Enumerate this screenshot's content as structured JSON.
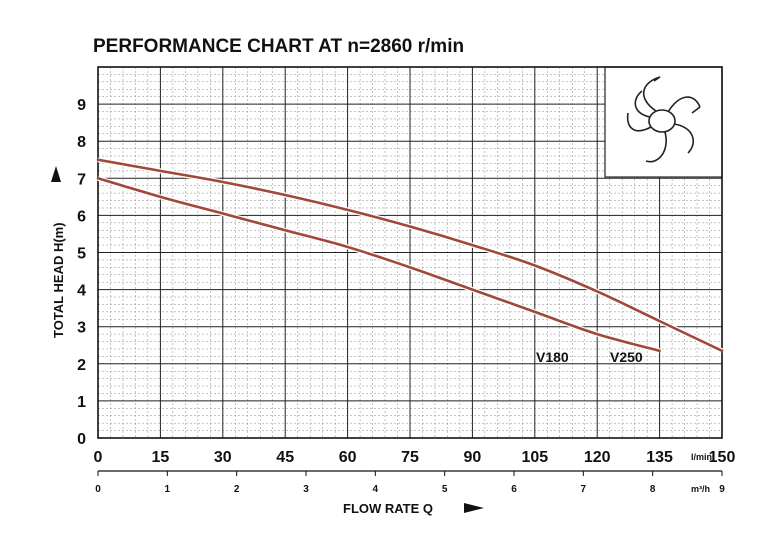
{
  "chart_data": {
    "type": "line",
    "title": "PERFORMANCE CHART AT n=2860 r/min",
    "ylabel": "TOTAL HEAD H(m)",
    "xlabel": "FLOW RATE Q",
    "x_unit": "l/min",
    "x2_unit": "m³/h",
    "xlim": [
      0,
      150
    ],
    "ylim": [
      0,
      10
    ],
    "x_ticks": [
      "0",
      "15",
      "30",
      "45",
      "60",
      "75",
      "90",
      "105",
      "120",
      "135",
      "150"
    ],
    "x2_ticks": [
      "0",
      "1",
      "2",
      "3",
      "4",
      "5",
      "6",
      "7",
      "8",
      "9"
    ],
    "y_ticks": [
      "0",
      "1",
      "2",
      "3",
      "4",
      "5",
      "6",
      "7",
      "8",
      "9"
    ],
    "grid": true,
    "series": [
      {
        "name": "V180",
        "color": "#a0483a",
        "x": [
          0,
          15,
          30,
          45,
          60,
          75,
          90,
          105,
          120,
          135
        ],
        "y": [
          7.0,
          6.5,
          6.05,
          5.6,
          5.15,
          4.6,
          4.0,
          3.4,
          2.8,
          2.35
        ]
      },
      {
        "name": "V250",
        "color": "#a0483a",
        "x": [
          0,
          15,
          30,
          45,
          60,
          75,
          90,
          105,
          120,
          135,
          150
        ],
        "y": [
          7.5,
          7.2,
          6.9,
          6.55,
          6.15,
          5.7,
          5.2,
          4.65,
          3.95,
          3.15,
          2.35
        ]
      }
    ]
  }
}
